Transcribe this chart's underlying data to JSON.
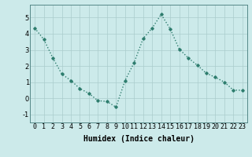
{
  "x": [
    0,
    1,
    2,
    3,
    4,
    5,
    6,
    7,
    8,
    9,
    10,
    11,
    12,
    13,
    14,
    15,
    16,
    17,
    18,
    19,
    20,
    21,
    22,
    23
  ],
  "y": [
    4.35,
    3.65,
    2.5,
    1.5,
    1.1,
    0.6,
    0.3,
    -0.15,
    -0.2,
    -0.55,
    1.1,
    2.2,
    3.7,
    4.35,
    5.2,
    4.3,
    3.05,
    2.5,
    2.05,
    1.55,
    1.3,
    1.0,
    0.5,
    0.5
  ],
  "line_color": "#2e7d6e",
  "marker": "D",
  "marker_size": 1.8,
  "bg_color": "#cceaea",
  "grid_color": "#aacccc",
  "xlabel": "Humidex (Indice chaleur)",
  "xlabel_fontsize": 7,
  "tick_fontsize": 6,
  "ylim": [
    -1.5,
    5.8
  ],
  "xlim": [
    -0.5,
    23.5
  ],
  "yticks": [
    -1,
    0,
    1,
    2,
    3,
    4,
    5
  ],
  "xticks": [
    0,
    1,
    2,
    3,
    4,
    5,
    6,
    7,
    8,
    9,
    10,
    11,
    12,
    13,
    14,
    15,
    16,
    17,
    18,
    19,
    20,
    21,
    22,
    23
  ],
  "linewidth": 1.0
}
